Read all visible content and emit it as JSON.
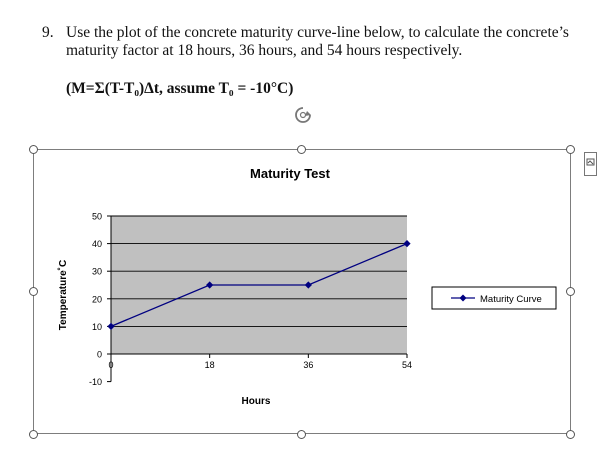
{
  "question": {
    "number": "9.",
    "text": "Use the plot of the concrete maturity curve-line below, to calculate the concrete’s maturity factor at 18 hours, 36 hours, and 54 hours respectively.",
    "formula": "(M=Σ(T-T₀)Δt, assume T₀ = -10°C)"
  },
  "chart_data": {
    "type": "line",
    "title": "Maturity Test",
    "xlabel": "Hours",
    "ylabel": "Temperature˚C",
    "x": [
      0,
      18,
      36,
      54
    ],
    "x_tick_labels": [
      "0",
      "18",
      "36",
      "54"
    ],
    "y_ticks": [
      50,
      40,
      30,
      20,
      10,
      0,
      -10
    ],
    "ylim": [
      -10,
      50
    ],
    "xlim": [
      0,
      54
    ],
    "plot_area_ylim": [
      0,
      50
    ],
    "grid": true,
    "legend_position": "right",
    "series": [
      {
        "name": "Maturity Curve",
        "values": [
          10,
          25,
          25,
          40
        ],
        "color": "#000080",
        "marker": "diamond"
      }
    ],
    "plot_background": "#c0c0c0"
  }
}
